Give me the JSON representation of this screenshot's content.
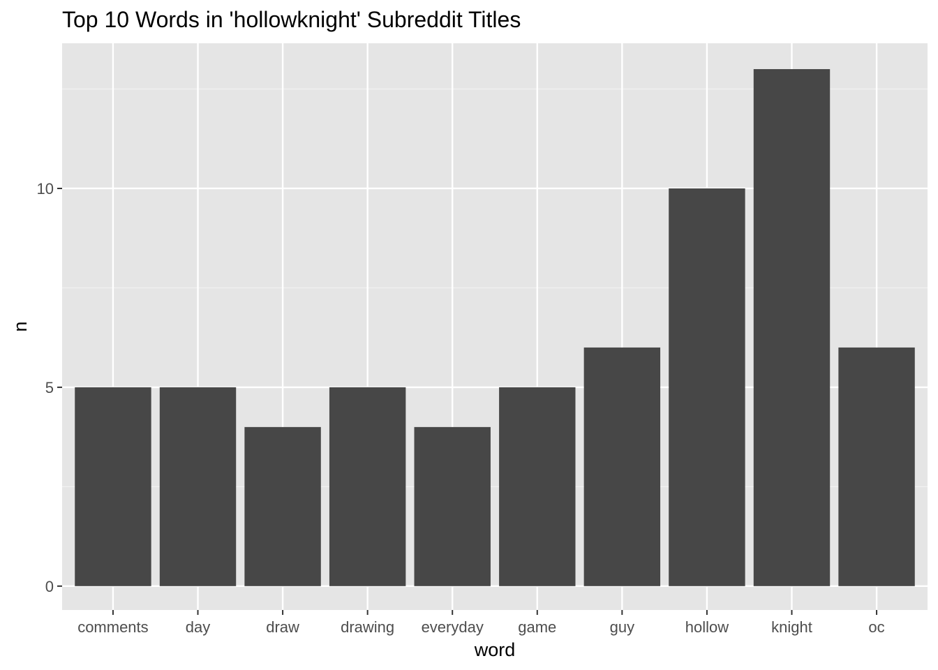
{
  "chart_data": {
    "type": "bar",
    "title": "Top 10 Words in 'hollowknight' Subreddit Titles",
    "xlabel": "word",
    "ylabel": "n",
    "categories": [
      "comments",
      "day",
      "draw",
      "drawing",
      "everyday",
      "game",
      "guy",
      "hollow",
      "knight",
      "oc"
    ],
    "values": [
      5,
      5,
      4,
      5,
      4,
      5,
      6,
      10,
      13,
      6
    ],
    "ylim": [
      -0.6,
      13.65
    ],
    "yticks": [
      0,
      5,
      10
    ],
    "grid": true,
    "legend": "none",
    "colors": {
      "panel_background": "#e5e5e5",
      "grid_major": "#ffffff",
      "grid_minor": "#f2f2f2",
      "bar_fill": "#474747",
      "tick_text": "#4d4d4d",
      "tick_mark": "#333333",
      "title_text": "#000000"
    }
  }
}
